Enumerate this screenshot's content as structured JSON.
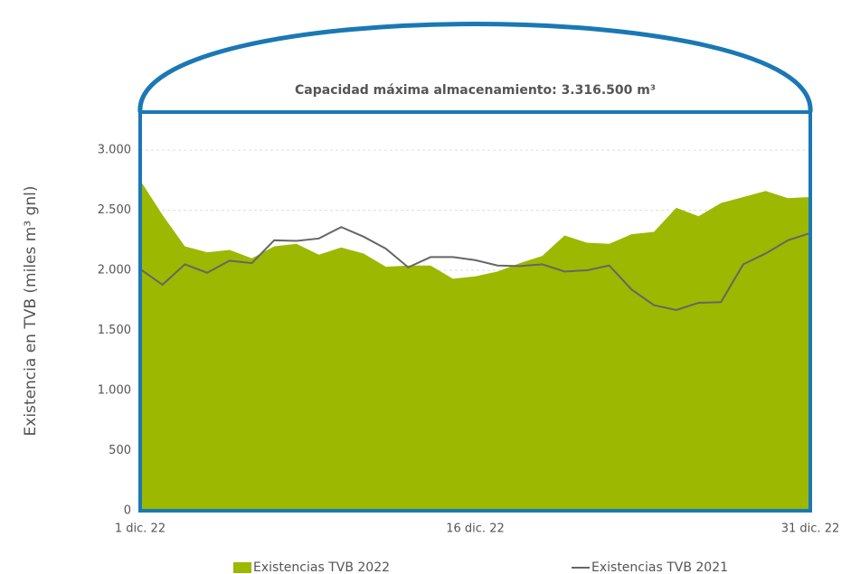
{
  "chart_data": {
    "type": "area-line",
    "annotation": "Capacidad máxima almacenamiento: 3.316.500 m³",
    "y_label": "Existencia en TVB (miles m³ gnl)",
    "categories": [
      "1 dic. 22",
      null,
      null,
      null,
      null,
      null,
      null,
      null,
      null,
      null,
      null,
      null,
      null,
      null,
      null,
      "16 dic. 22",
      null,
      null,
      null,
      null,
      null,
      null,
      null,
      null,
      null,
      null,
      null,
      null,
      null,
      null,
      "31 dic. 22"
    ],
    "series": [
      {
        "name": "Existencias TVB 2022",
        "color": "#9cb800",
        "kind": "area",
        "values": [
          2750,
          2460,
          2200,
          2150,
          2170,
          2100,
          2200,
          2220,
          2130,
          2190,
          2140,
          2030,
          2040,
          2040,
          1930,
          1950,
          1990,
          2060,
          2120,
          2290,
          2230,
          2220,
          2300,
          2320,
          2520,
          2450,
          2560,
          2610,
          2660,
          2600,
          2610
        ]
      },
      {
        "name": "Existencias TVB 2021",
        "color": "#666666",
        "kind": "line",
        "values": [
          2010,
          1880,
          2050,
          1980,
          2080,
          2060,
          2250,
          2245,
          2265,
          2360,
          2280,
          2180,
          2025,
          2110,
          2110,
          2085,
          2040,
          2035,
          2050,
          1990,
          2000,
          2040,
          1840,
          1710,
          1670,
          1730,
          1735,
          2050,
          2140,
          2250,
          2310
        ]
      }
    ],
    "ylim": [
      0,
      3316.5
    ],
    "yticks": [
      0,
      500,
      {
        "value": 1000,
        "label": "1.000"
      },
      {
        "value": 1500,
        "label": "1.500"
      },
      {
        "value": 2000,
        "label": "2.000"
      },
      {
        "value": 2500,
        "label": "2.500"
      },
      {
        "value": 3000,
        "label": "3.000"
      }
    ],
    "grid": true,
    "tank_color": "#1a78b4"
  }
}
